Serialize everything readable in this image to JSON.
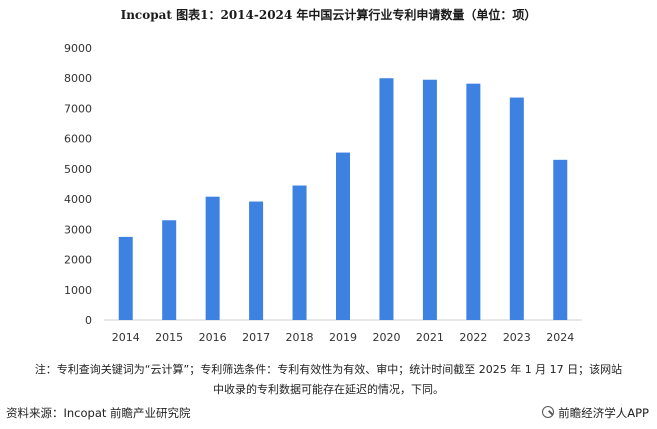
{
  "header": {
    "title": "Incopat  图表1：2014-2024 年中国云计算行业专利申请数量（单位：项）"
  },
  "chart_data": {
    "type": "bar",
    "title": "Incopat  图表1：2014-2024 年中国云计算行业专利申请数量（单位：项）",
    "categories": [
      "2014",
      "2015",
      "2016",
      "2017",
      "2018",
      "2019",
      "2020",
      "2021",
      "2022",
      "2023",
      "2024"
    ],
    "values": [
      2750,
      3300,
      4080,
      3920,
      4450,
      5540,
      8000,
      7950,
      7820,
      7360,
      5300
    ],
    "ylim": [
      0,
      9000
    ],
    "yticks": [
      "0",
      "1000",
      "2000",
      "3000",
      "4000",
      "5000",
      "6000",
      "7000",
      "8000",
      "9000"
    ],
    "bar_color": "#3d82e0",
    "grid": false
  },
  "footer": {
    "note_line1": "注：专利查询关键词为“云计算”；专利筛选条件：专利有效性为有效、审中；统计时间截至 2025 年 1 月 17 日；该网站",
    "note_line2": "中收录的专利数据可能存在延迟的情况，下同。",
    "source": "资料来源：Incopat 前瞻产业研究院",
    "brand": "前瞻经济学人APP"
  }
}
